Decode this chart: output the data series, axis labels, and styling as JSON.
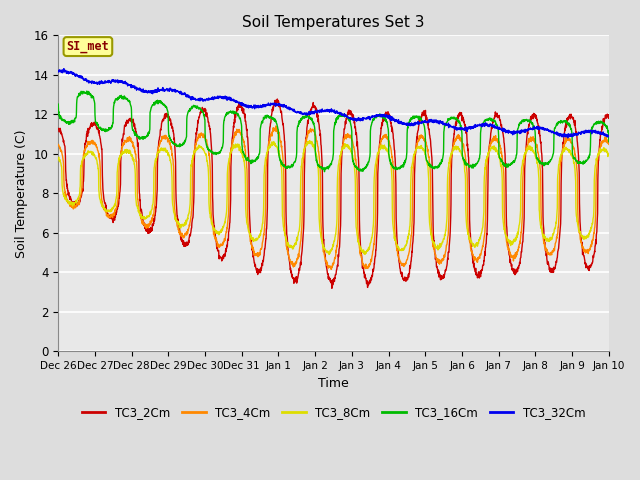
{
  "title": "Soil Temperatures Set 3",
  "xlabel": "Time",
  "ylabel": "Soil Temperature (C)",
  "ylim": [
    0,
    16
  ],
  "yticks": [
    0,
    2,
    4,
    6,
    8,
    10,
    12,
    14,
    16
  ],
  "bg_color": "#dddddd",
  "plot_bg_color": "#e8e8e8",
  "grid_color": "#ffffff",
  "annotation_text": "SI_met",
  "annotation_bg": "#ffff99",
  "annotation_border": "#999900",
  "annotation_text_color": "#880000",
  "series_colors": {
    "TC3_2Cm": "#cc0000",
    "TC3_4Cm": "#ff8800",
    "TC3_8Cm": "#dddd00",
    "TC3_16Cm": "#00bb00",
    "TC3_32Cm": "#0000ee"
  },
  "legend_labels": [
    "TC3_2Cm",
    "TC3_4Cm",
    "TC3_8Cm",
    "TC3_16Cm",
    "TC3_32Cm"
  ],
  "x_tick_labels": [
    "Dec 26",
    "Dec 27",
    "Dec 28",
    "Dec 29",
    "Dec 30",
    "Dec 31",
    "Jan 1",
    "Jan 2",
    "Jan 3",
    "Jan 4",
    "Jan 5",
    "Jan 6",
    "Jan 7",
    "Jan 8",
    "Jan 9",
    "Jan 10"
  ],
  "figsize": [
    6.4,
    4.8
  ],
  "dpi": 100
}
